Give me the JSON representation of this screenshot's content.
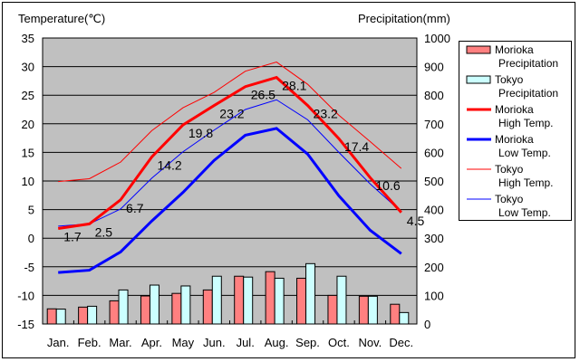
{
  "chart_data": {
    "type": "bar+line",
    "categories": [
      "Jan.",
      "Feb.",
      "Mar.",
      "Apr.",
      "May",
      "Jun.",
      "Jul.",
      "Aug.",
      "Sep.",
      "Oct.",
      "Nov.",
      "Dec."
    ],
    "left_axis": {
      "label": "Temperature(℃)",
      "range": [
        -15,
        35
      ],
      "ticks": [
        "35",
        "30",
        "25",
        "20",
        "15",
        "10",
        "5",
        "0",
        "-5",
        "-10",
        "-15"
      ]
    },
    "right_axis": {
      "label": "Precipitation(mm)",
      "range": [
        0,
        1000
      ],
      "ticks": [
        "1000",
        "900",
        "800",
        "700",
        "600",
        "500",
        "400",
        "300",
        "200",
        "100",
        "0"
      ]
    },
    "grid": true,
    "legend_position": "right",
    "bar_series": [
      {
        "name": "Morioka Precipitation",
        "legend": [
          "Morioka",
          "Precipitation"
        ],
        "color": "#ff8080",
        "values": [
          53,
          59,
          81,
          98,
          107,
          119,
          167,
          183,
          160,
          100,
          97,
          69
        ]
      },
      {
        "name": "Tokyo Precipitation",
        "legend": [
          "Tokyo",
          "Precipitation"
        ],
        "color": "#ccffff",
        "values": [
          52,
          62,
          119,
          136,
          133,
          167,
          164,
          160,
          211,
          167,
          97,
          40
        ]
      }
    ],
    "line_series": [
      {
        "name": "Morioka High Temp.",
        "legend": [
          "Morioka",
          "High Temp."
        ],
        "color": "#ff0000",
        "width": 3,
        "values": [
          1.7,
          2.5,
          6.7,
          14.2,
          19.8,
          23.2,
          26.5,
          28.1,
          23.2,
          17.4,
          10.6,
          4.5
        ],
        "labels": [
          "1.7",
          "2.5",
          "6.7",
          "14.2",
          "19.8",
          "23.2",
          "26.5",
          "28.1",
          "23.2",
          "17.4",
          "10.6",
          "4.5"
        ]
      },
      {
        "name": "Morioka Low Temp.",
        "legend": [
          "Morioka",
          "Low Temp."
        ],
        "color": "#0000ff",
        "width": 3,
        "values": [
          -6.0,
          -5.6,
          -2.4,
          3.0,
          8.0,
          13.6,
          18.0,
          19.2,
          14.7,
          7.4,
          1.4,
          -2.7
        ]
      },
      {
        "name": "Tokyo High Temp.",
        "legend": [
          "Tokyo",
          "High Temp."
        ],
        "color": "#ff0000",
        "width": 1,
        "values": [
          9.9,
          10.4,
          13.3,
          18.8,
          22.8,
          25.5,
          29.2,
          30.8,
          26.9,
          21.5,
          16.9,
          12.2
        ]
      },
      {
        "name": "Tokyo Low Temp.",
        "legend": [
          "Tokyo",
          "Low Temp."
        ],
        "color": "#0000ff",
        "width": 1,
        "values": [
          2.1,
          2.5,
          5.1,
          10.5,
          15.1,
          18.9,
          22.5,
          24.2,
          20.7,
          15.0,
          9.5,
          4.6
        ]
      }
    ]
  }
}
